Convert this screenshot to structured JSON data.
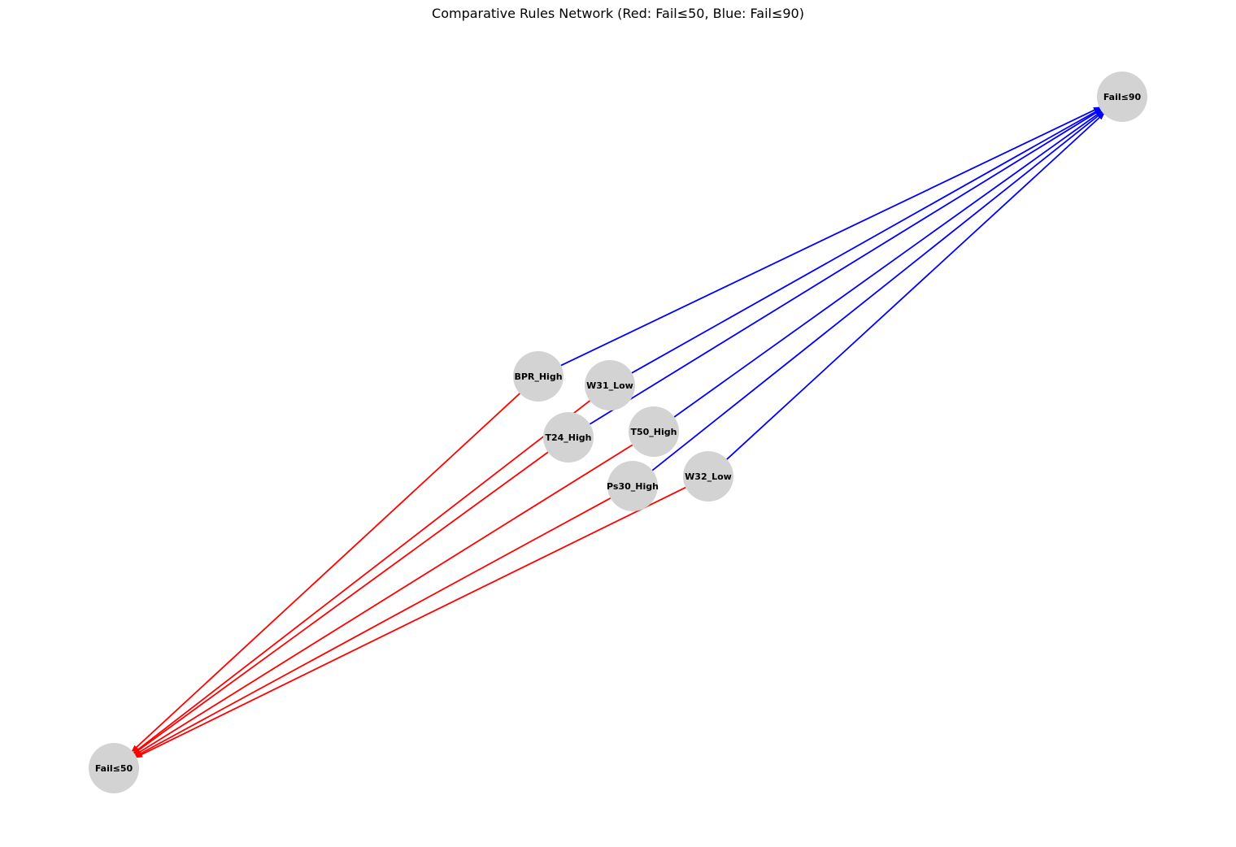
{
  "title": "Comparative Rules Network (Red: Fail≤50, Blue: Fail≤90)",
  "colors": {
    "node_fill": "#d3d3d3",
    "edge_fail50": "#ff0000",
    "edge_fail90": "#0000ff",
    "label": "#000000"
  },
  "nodes": [
    {
      "id": "fail90",
      "label": "Fail≤90",
      "kind": "target"
    },
    {
      "id": "fail50",
      "label": "Fail≤50",
      "kind": "target"
    },
    {
      "id": "bpr_high",
      "label": "BPR_High",
      "kind": "rule"
    },
    {
      "id": "w31_low",
      "label": "W31_Low",
      "kind": "rule"
    },
    {
      "id": "t24_high",
      "label": "T24_High",
      "kind": "rule"
    },
    {
      "id": "t50_high",
      "label": "T50_High",
      "kind": "rule"
    },
    {
      "id": "ps30_high",
      "label": "Ps30_High",
      "kind": "rule"
    },
    {
      "id": "w32_low",
      "label": "W32_Low",
      "kind": "rule"
    }
  ],
  "edges": [
    {
      "from": "bpr_high",
      "to": "fail90",
      "color": "blue"
    },
    {
      "from": "w31_low",
      "to": "fail90",
      "color": "blue"
    },
    {
      "from": "t24_high",
      "to": "fail90",
      "color": "blue"
    },
    {
      "from": "t50_high",
      "to": "fail90",
      "color": "blue"
    },
    {
      "from": "ps30_high",
      "to": "fail90",
      "color": "blue"
    },
    {
      "from": "w32_low",
      "to": "fail90",
      "color": "blue"
    },
    {
      "from": "bpr_high",
      "to": "fail50",
      "color": "red"
    },
    {
      "from": "w31_low",
      "to": "fail50",
      "color": "red"
    },
    {
      "from": "t24_high",
      "to": "fail50",
      "color": "red"
    },
    {
      "from": "t50_high",
      "to": "fail50",
      "color": "red"
    },
    {
      "from": "ps30_high",
      "to": "fail50",
      "color": "red"
    },
    {
      "from": "w32_low",
      "to": "fail50",
      "color": "red"
    }
  ]
}
